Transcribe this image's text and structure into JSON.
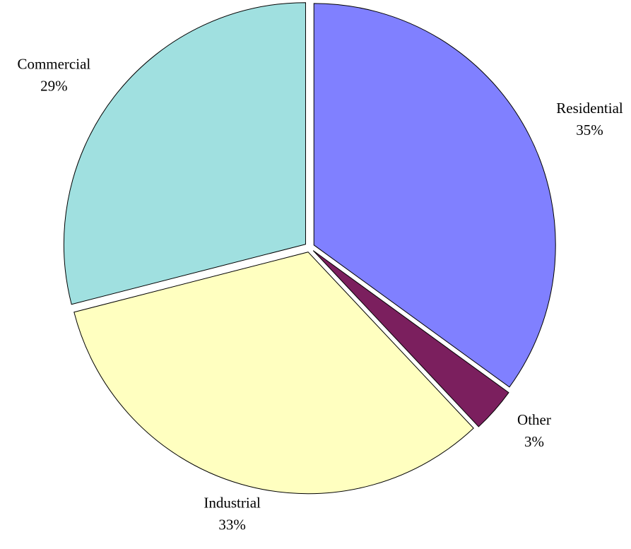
{
  "chart_data": {
    "type": "pie",
    "title": "",
    "slices": [
      {
        "label": "Residential",
        "value": 35,
        "percent_label": "35%",
        "color": "#8080ff"
      },
      {
        "label": "Other",
        "value": 3,
        "percent_label": "3%",
        "color": "#7b1f5e"
      },
      {
        "label": "Industrial",
        "value": 33,
        "percent_label": "33%",
        "color": "#ffffc0"
      },
      {
        "label": "Commercial",
        "value": 29,
        "percent_label": "29%",
        "color": "#a0e0e0"
      }
    ],
    "exploded": true,
    "legend": "none",
    "start_angle": "12 o'clock",
    "direction": "clockwise"
  }
}
